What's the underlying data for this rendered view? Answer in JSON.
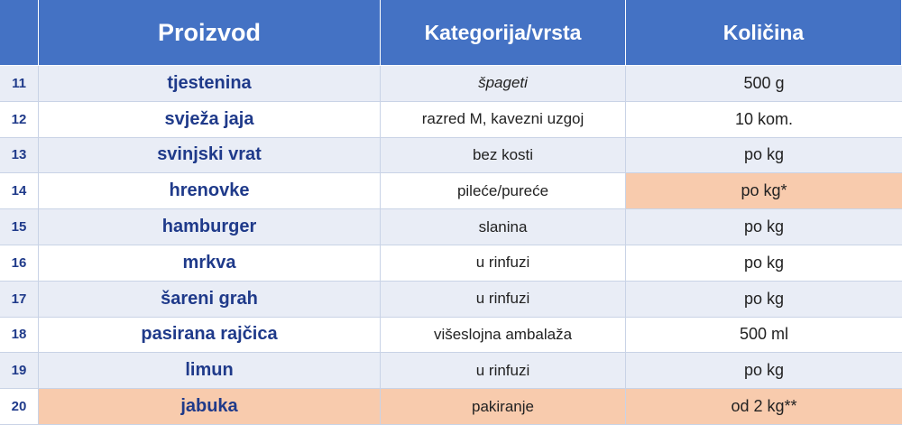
{
  "header": {
    "num": "",
    "product": "Proizvod",
    "category": "Kategorija/vrsta",
    "quantity": "Količina"
  },
  "rows": [
    {
      "num": "11",
      "product": "tjestenina",
      "category": "špageti",
      "quantity": "500 g"
    },
    {
      "num": "12",
      "product": "svježa jaja",
      "category": "razred M, kavezni uzgoj",
      "quantity": "10 kom."
    },
    {
      "num": "13",
      "product": "svinjski vrat",
      "category": "bez kosti",
      "quantity": "po kg"
    },
    {
      "num": "14",
      "product": "hrenovke",
      "category": "pileće/pureće",
      "quantity": "po kg*"
    },
    {
      "num": "15",
      "product": "hamburger",
      "category": "slanina",
      "quantity": "po kg"
    },
    {
      "num": "16",
      "product": "mrkva",
      "category": "u rinfuzi",
      "quantity": "po kg"
    },
    {
      "num": "17",
      "product": "šareni grah",
      "category": "u rinfuzi",
      "quantity": "po kg"
    },
    {
      "num": "18",
      "product": "pasirana rajčica",
      "category": "višeslojna ambalaža",
      "quantity": "500 ml"
    },
    {
      "num": "19",
      "product": "limun",
      "category": "u rinfuzi",
      "quantity": "po kg"
    },
    {
      "num": "20",
      "product": "jabuka",
      "category": "pakiranje",
      "quantity": "od 2 kg**"
    }
  ],
  "colors": {
    "header_bg": "#4472c4",
    "row_alt_bg": "#e9edf6",
    "highlight_bg": "#f8cbad",
    "text_accent": "#1f3a8a"
  }
}
